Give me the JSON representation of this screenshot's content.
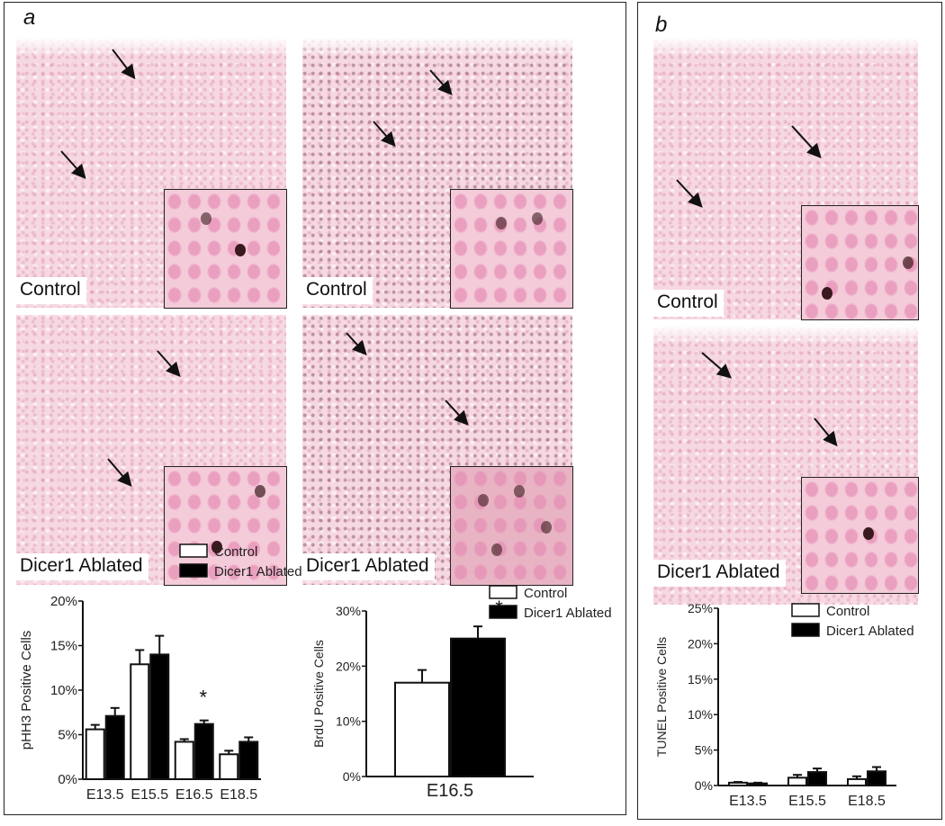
{
  "panels": {
    "a": "a",
    "b": "b"
  },
  "image_labels": {
    "control": "Control",
    "ablated": "Dicer1 Ablated"
  },
  "chart_data": [
    {
      "type": "bar",
      "ylabel": "pHH3 Positive Cells",
      "categories": [
        "E13.5",
        "E15.5",
        "E16.5",
        "E18.5"
      ],
      "ylim": [
        0,
        20
      ],
      "yticks": [
        "0%",
        "5%",
        "10%",
        "15%",
        "20%"
      ],
      "ytick_values": [
        0,
        5,
        10,
        15,
        20
      ],
      "series": [
        {
          "name": "Control",
          "values": [
            5.6,
            12.9,
            4.2,
            2.8
          ],
          "errors": [
            0.5,
            1.6,
            0.3,
            0.4
          ],
          "color": "#ffffff"
        },
        {
          "name": "Dicer1 Ablated",
          "values": [
            7.1,
            14.0,
            6.2,
            4.2
          ],
          "errors": [
            0.9,
            2.1,
            0.4,
            0.5
          ],
          "color": "#000000"
        }
      ],
      "annotations": [
        {
          "category": "E16.5",
          "text": "*"
        }
      ],
      "legend": "top-right"
    },
    {
      "type": "bar",
      "ylabel": "BrdU Positive Cells",
      "categories": [
        "E16.5"
      ],
      "ylim": [
        0,
        30
      ],
      "yticks": [
        "0%",
        "10%",
        "20%",
        "30%"
      ],
      "ytick_values": [
        0,
        10,
        20,
        30
      ],
      "series": [
        {
          "name": "Control",
          "values": [
            17
          ],
          "errors": [
            2.3
          ],
          "color": "#ffffff"
        },
        {
          "name": "Dicer1 Ablated",
          "values": [
            25
          ],
          "errors": [
            2.2
          ],
          "color": "#000000"
        }
      ],
      "annotations": [
        {
          "category": "E16.5",
          "text": "*"
        }
      ],
      "legend": "top-right"
    },
    {
      "type": "bar",
      "ylabel": "TUNEL Positive Cells",
      "categories": [
        "E13.5",
        "E15.5",
        "E18.5"
      ],
      "ylim": [
        0,
        25
      ],
      "yticks": [
        "0%",
        "5%",
        "10%",
        "15%",
        "20%",
        "25%"
      ],
      "ytick_values": [
        0,
        5,
        10,
        15,
        20,
        25
      ],
      "series": [
        {
          "name": "Control",
          "values": [
            0.4,
            1.1,
            0.9
          ],
          "errors": [
            0.1,
            0.4,
            0.4
          ],
          "color": "#ffffff"
        },
        {
          "name": "Dicer1 Ablated",
          "values": [
            0.3,
            1.9,
            2.0
          ],
          "errors": [
            0.1,
            0.5,
            0.6
          ],
          "color": "#000000"
        }
      ],
      "annotations": [],
      "legend": "top-right"
    }
  ]
}
